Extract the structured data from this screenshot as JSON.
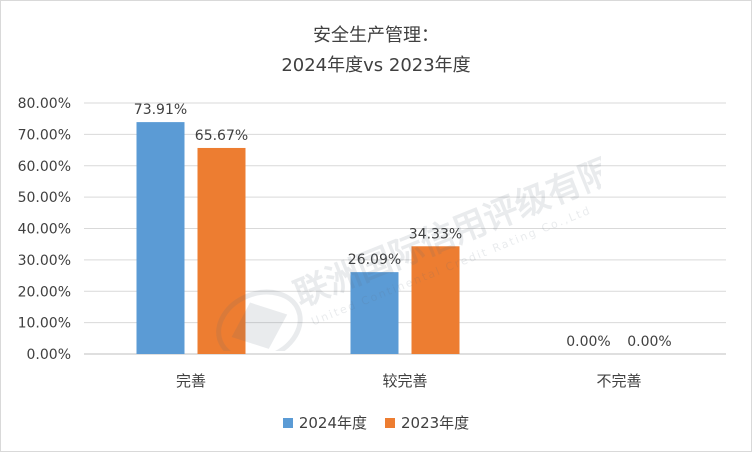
{
  "chart_data": {
    "type": "bar",
    "title": [
      "安全生产管理：",
      "2024年度vs 2023年度"
    ],
    "categories": [
      "完善",
      "较完善",
      "不完善"
    ],
    "series": [
      {
        "name": "2024年度",
        "values": [
          73.91,
          26.09,
          0.0
        ],
        "labels": [
          "73.91%",
          "26.09%",
          "0.00%"
        ],
        "color": "#5b9bd5"
      },
      {
        "name": "2023年度",
        "values": [
          65.67,
          34.33,
          0.0
        ],
        "labels": [
          "65.67%",
          "34.33%",
          "0.00%"
        ],
        "color": "#ed7d31"
      }
    ],
    "ylim": [
      0,
      80
    ],
    "yticks": [
      "0.00%",
      "10.00%",
      "20.00%",
      "30.00%",
      "40.00%",
      "50.00%",
      "60.00%",
      "70.00%",
      "80.00%"
    ],
    "grid": true,
    "legend_position": "bottom"
  },
  "watermark": {
    "text_cn": "联洲国际信用评级有限公司",
    "text_en": "United Continental Credit Rating Co.,Ltd"
  }
}
